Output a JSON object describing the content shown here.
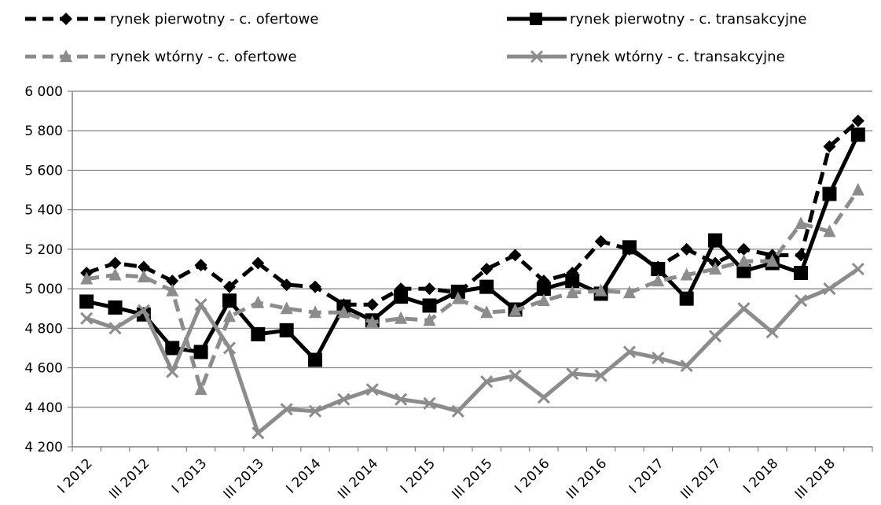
{
  "chart_data": {
    "type": "line",
    "title": "",
    "xlabel": "",
    "ylabel": "",
    "ylim": [
      4200,
      6000
    ],
    "yticks": [
      4200,
      4400,
      4600,
      4800,
      5000,
      5200,
      5400,
      5600,
      5800,
      6000
    ],
    "ytick_labels": [
      "4 200",
      "4 400",
      "4 600",
      "4 800",
      "5 000",
      "5 200",
      "5 400",
      "5 600",
      "5 800",
      "6 000"
    ],
    "grid": "horizontal",
    "legend_position": "top",
    "categories": [
      "I 2012",
      "II 2012",
      "III 2012",
      "IV 2012",
      "I 2013",
      "II 2013",
      "III 2013",
      "IV 2013",
      "I 2014",
      "II 2014",
      "III 2014",
      "IV 2014",
      "I 2015",
      "II 2015",
      "III 2015",
      "IV 2015",
      "I 2016",
      "II 2016",
      "III 2016",
      "IV 2016",
      "I 2017",
      "II 2017",
      "III 2017",
      "IV 2017",
      "I 2018",
      "II 2018",
      "III 2018",
      "IV 2018"
    ],
    "x_tick_labels": [
      "I 2012",
      "III 2012",
      "I 2013",
      "III 2013",
      "I 2014",
      "III 2014",
      "I 2015",
      "III 2015",
      "I 2016",
      "III 2016",
      "I 2017",
      "III 2017",
      "I 2018",
      "III 2018"
    ],
    "series": [
      {
        "name": "rynek pierwotny - c. ofertowe",
        "color": "#000000",
        "dash": "dashed",
        "marker": "diamond",
        "values": [
          5080,
          5130,
          5110,
          5040,
          5120,
          5010,
          5130,
          5020,
          5010,
          4920,
          4920,
          5000,
          5000,
          4980,
          5100,
          5170,
          5040,
          5080,
          5240,
          5200,
          5110,
          5200,
          5130,
          5200,
          5170,
          5170,
          5720,
          5850
        ]
      },
      {
        "name": "rynek pierwotny - c. transakcyjne",
        "color": "#000000",
        "dash": "solid",
        "marker": "square",
        "values": [
          4935,
          4905,
          4870,
          4700,
          4680,
          4940,
          4770,
          4790,
          4640,
          4910,
          4840,
          4960,
          4915,
          4985,
          5010,
          4895,
          5000,
          5040,
          4975,
          5210,
          5100,
          4950,
          5245,
          5090,
          5130,
          5080,
          5480,
          5780
        ]
      },
      {
        "name": "rynek wtórny - c. ofertowe",
        "color": "#8c8c8c",
        "dash": "dashed",
        "marker": "triangle",
        "values": [
          5050,
          5070,
          5060,
          4990,
          4490,
          4860,
          4930,
          4900,
          4880,
          4880,
          4830,
          4850,
          4840,
          4950,
          4880,
          4890,
          4940,
          4980,
          4990,
          4980,
          5040,
          5070,
          5100,
          5140,
          5140,
          5330,
          5290,
          5500
        ]
      },
      {
        "name": "rynek wtórny - c. transakcyjne",
        "color": "#8c8c8c",
        "dash": "solid",
        "marker": "x",
        "values": [
          4850,
          4800,
          4890,
          4580,
          4920,
          4700,
          4270,
          4390,
          4380,
          4440,
          4490,
          4440,
          4420,
          4380,
          4530,
          4560,
          4450,
          4570,
          4560,
          4680,
          4650,
          4610,
          4760,
          4900,
          4780,
          4940,
          5000,
          5100
        ]
      }
    ]
  }
}
